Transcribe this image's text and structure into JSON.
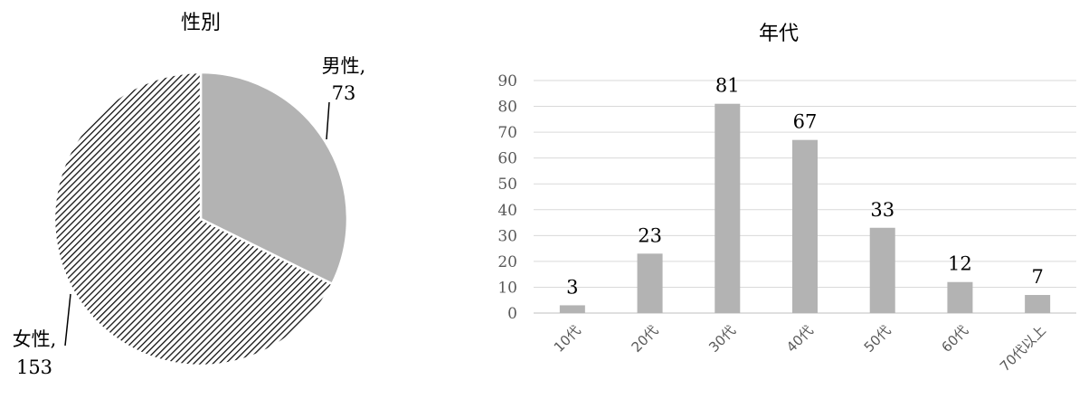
{
  "chart_data": [
    {
      "type": "pie",
      "title": "性別",
      "slices": [
        {
          "label": "男性",
          "value": 73,
          "fill": "#b3b3b3"
        },
        {
          "label": "女性",
          "value": 153,
          "fill": "hatch"
        }
      ],
      "data_labels": [
        "男性,",
        "73",
        "女性,",
        "153"
      ]
    },
    {
      "type": "bar",
      "title": "年代",
      "categories": [
        "10代",
        "20代",
        "30代",
        "40代",
        "50代",
        "60代",
        "70代以上"
      ],
      "values": [
        3,
        23,
        81,
        67,
        33,
        12,
        7
      ],
      "ylim": [
        0,
        90
      ],
      "yticks": [
        "0",
        "10",
        "20",
        "30",
        "40",
        "50",
        "60",
        "70",
        "80",
        "90"
      ],
      "grid": true,
      "bar_color": "#b3b3b3"
    }
  ]
}
